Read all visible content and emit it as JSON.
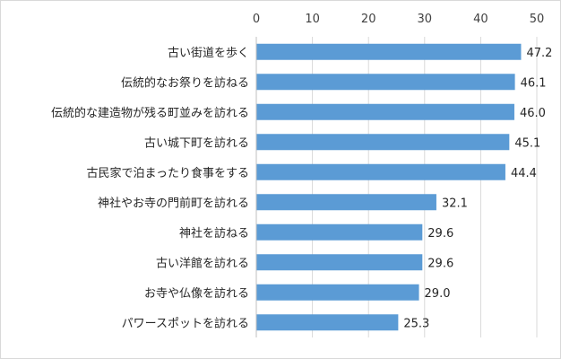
{
  "chart_data": {
    "type": "bar",
    "orientation": "horizontal",
    "title": "",
    "xlabel": "",
    "ylabel": "",
    "xlim": [
      0,
      50
    ],
    "ticks": [
      0,
      10,
      20,
      30,
      40,
      50
    ],
    "tick_position": "top",
    "grid": true,
    "legend": "none",
    "bar_color": "#5b9bd5",
    "categories": [
      "古い街道を歩く",
      "伝統的なお祭りを訪ねる",
      "伝統的な建造物が残る町並みを訪れる",
      "古い城下町を訪れる",
      "古民家で泊まったり食事をする",
      "神社やお寺の門前町を訪れる",
      "神社を訪ねる",
      "古い洋館を訪れる",
      "お寺や仏像を訪れる",
      "パワースポットを訪れる"
    ],
    "values": [
      47.2,
      46.1,
      46.0,
      45.1,
      44.4,
      32.1,
      29.6,
      29.6,
      29.0,
      25.3
    ],
    "data_labels": [
      "47.2",
      "46.1",
      "46.0",
      "45.1",
      "44.4",
      "32.1",
      "29.6",
      "29.6",
      "29.0",
      "25.3"
    ]
  }
}
